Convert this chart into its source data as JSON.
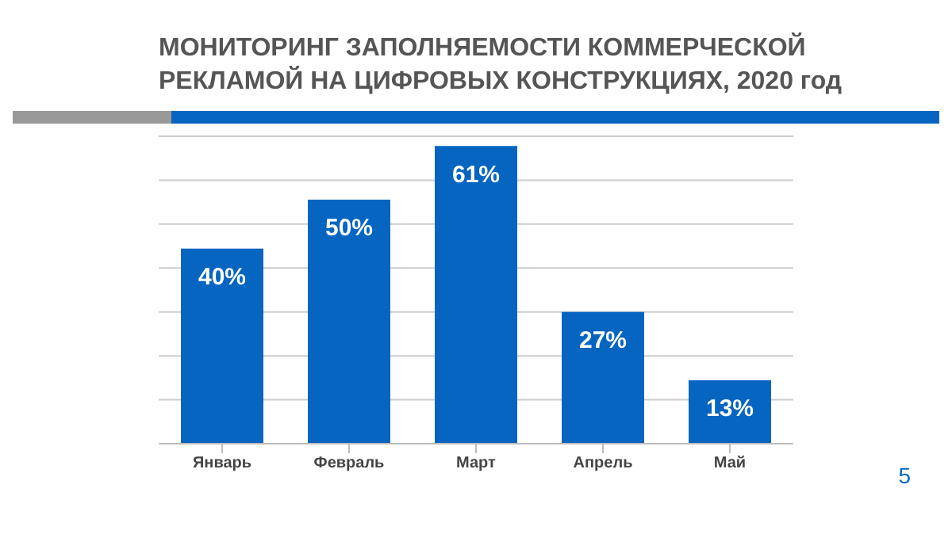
{
  "chart_data": {
    "type": "bar",
    "title": "МОНИТОРИНГ ЗАПОЛНЯЕМОСТИ КОММЕРЧЕСКОЙ РЕКЛАМОЙ НА ЦИФРОВЫХ КОНСТРУКЦИЯХ, 2020 год",
    "categories": [
      "Январь",
      "Февраль",
      "Март",
      "Апрель",
      "Май"
    ],
    "values": [
      40,
      50,
      61,
      27,
      13
    ],
    "color": "#0565c0",
    "value_labels": [
      "40%",
      "50%",
      "61%",
      "27%",
      "13%"
    ],
    "grid": "y",
    "tick_labels": "x",
    "annotations": [
      "5"
    ]
  }
}
